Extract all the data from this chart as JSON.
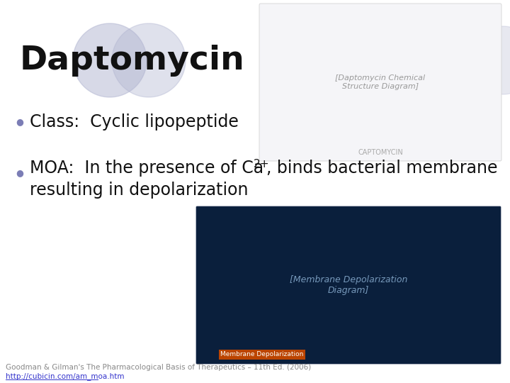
{
  "title": "Daptomycin",
  "title_fontsize": 34,
  "bg_color": "#ffffff",
  "bullet_color": "#7b7db5",
  "bullet1_text": "Class:  Cyclic lipopeptide",
  "bullet_fontsize": 17,
  "moa_prefix": "MOA:  In the presence of Ca",
  "moa_superscript": "2+",
  "moa_suffix": ", binds bacterial membrane",
  "moa_line2": "resulting in depolarization",
  "footnote1": "Goodman & Gilman's The Pharmacological Basis of Therapeutics – 11th Ed. (2006)",
  "footnote2": "http://cubicin.com/am_moa.htm",
  "footnote_fontsize": 7.5,
  "footnote_color": "#888888",
  "link_color": "#3333cc",
  "circle_color": "#b0b4d0",
  "title_text_color": "#111111",
  "body_text_color": "#111111"
}
